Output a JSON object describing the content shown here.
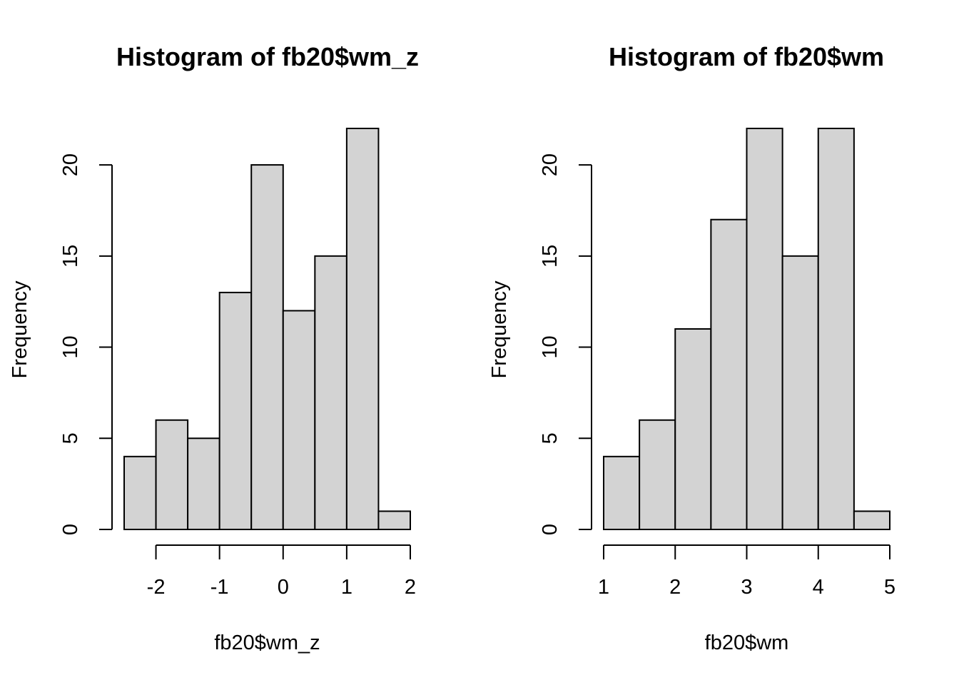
{
  "chart_data": [
    {
      "type": "bar",
      "subtype": "histogram",
      "title": "Histogram of fb20$wm_z",
      "xlabel": "fb20$wm_z",
      "ylabel": "Frequency",
      "bin_edges": [
        -2.5,
        -2.0,
        -1.5,
        -1.0,
        -0.5,
        0.0,
        0.5,
        1.0,
        1.5,
        2.0
      ],
      "values": [
        4,
        6,
        5,
        13,
        20,
        12,
        15,
        22,
        1
      ],
      "x_ticks": [
        -2,
        -1,
        0,
        1,
        2
      ],
      "x_tick_labels": [
        "-2",
        "-1",
        "0",
        "1",
        "2"
      ],
      "y_ticks": [
        0,
        5,
        10,
        15,
        20
      ],
      "y_tick_labels": [
        "0",
        "5",
        "10",
        "15",
        "20"
      ],
      "xlim": [
        -2.5,
        2.0
      ],
      "ylim": [
        0,
        22
      ],
      "grid": false,
      "bar_color": "#d3d3d3"
    },
    {
      "type": "bar",
      "subtype": "histogram",
      "title": "Histogram of fb20$wm",
      "xlabel": "fb20$wm",
      "ylabel": "Frequency",
      "bin_edges": [
        1.0,
        1.5,
        2.0,
        2.5,
        3.0,
        3.5,
        4.0,
        4.5,
        5.0
      ],
      "values": [
        4,
        6,
        11,
        17,
        22,
        15,
        22,
        1
      ],
      "x_ticks": [
        1,
        2,
        3,
        4,
        5
      ],
      "x_tick_labels": [
        "1",
        "2",
        "3",
        "4",
        "5"
      ],
      "y_ticks": [
        0,
        5,
        10,
        15,
        20
      ],
      "y_tick_labels": [
        "0",
        "5",
        "10",
        "15",
        "20"
      ],
      "xlim": [
        1.0,
        5.0
      ],
      "ylim": [
        0,
        22
      ],
      "grid": false,
      "bar_color": "#d3d3d3"
    }
  ]
}
